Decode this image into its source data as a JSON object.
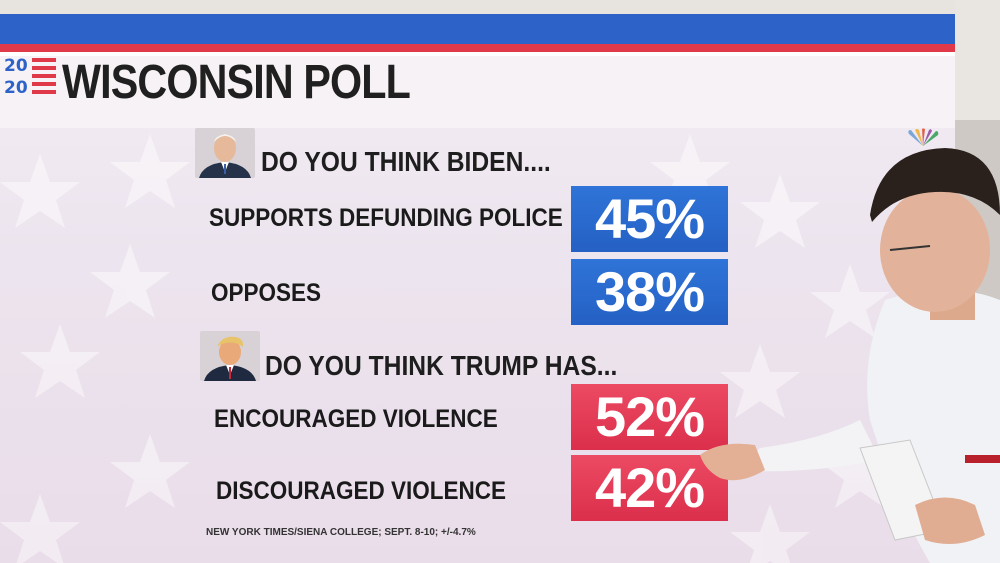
{
  "graphic": {
    "logo_top": "20",
    "logo_bottom": "20",
    "title": "WISCONSIN POLL",
    "source": "NEW YORK TIMES/SIENA COLLEGE; SEPT. 8-10; +/-4.7%"
  },
  "sections": [
    {
      "question": "DO YOU THINK BIDEN....",
      "color": "#2867cf",
      "rows": [
        {
          "label": "SUPPORTS DEFUNDING POLICE",
          "value": "45%"
        },
        {
          "label": "OPPOSES",
          "value": "38%"
        }
      ]
    },
    {
      "question": "DO YOU THINK TRUMP HAS...",
      "color": "#e23b56",
      "rows": [
        {
          "label": "ENCOURAGED VIOLENCE",
          "value": "52%"
        },
        {
          "label": "DISCOURAGED VIOLENCE",
          "value": "42%"
        }
      ]
    }
  ],
  "colors": {
    "accent_blue": "#2d62c8",
    "accent_red": "#e03a4a"
  },
  "icons": [
    "biden-portrait",
    "trump-portrait",
    "peacock-logo-icon"
  ]
}
